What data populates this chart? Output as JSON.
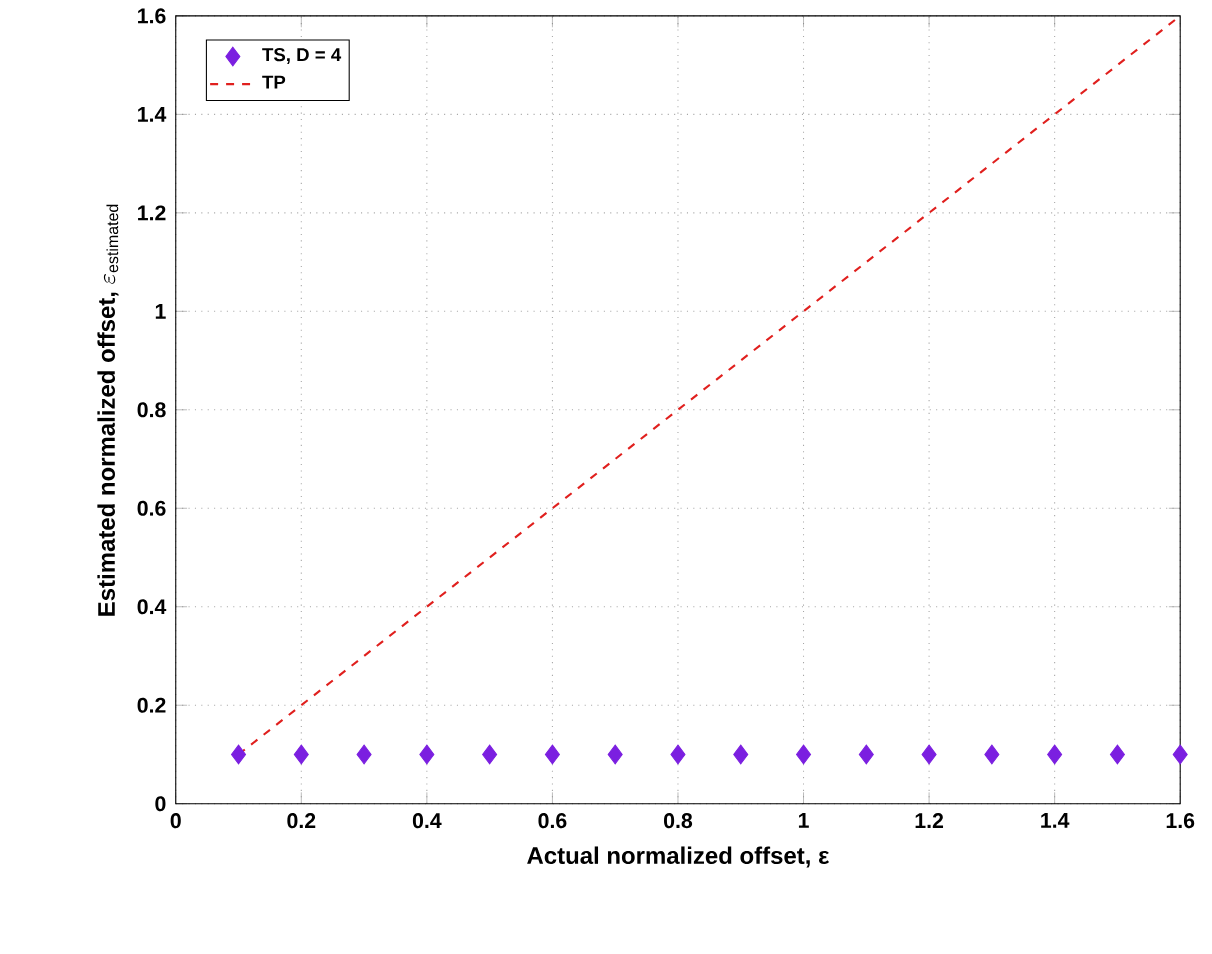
{
  "chart_data": {
    "type": "scatter",
    "xlabel": "Actual normalized offset, ε",
    "ylabel": "\\mbox{Estimated normalized offset, }\\varepsilon_{\\mathrm{estimated}}",
    "xlim": [
      0,
      1.6
    ],
    "ylim": [
      0,
      1.6
    ],
    "xticks": [
      0,
      0.2,
      0.4,
      0.6,
      0.8,
      1,
      1.2,
      1.4,
      1.6
    ],
    "yticks": [
      0,
      0.2,
      0.4,
      0.6,
      0.8,
      1,
      1.2,
      1.4,
      1.6
    ],
    "grid": true,
    "legend": "top left",
    "series": [
      {
        "name": "TS, D = 4",
        "marker": "diamond",
        "color": "#7b1fe0",
        "x": [
          0.1,
          0.2,
          0.3,
          0.4,
          0.5,
          0.6,
          0.7,
          0.8,
          0.9,
          1.0,
          1.1,
          1.2,
          1.3,
          1.4,
          1.5,
          1.6
        ],
        "values": [
          0.1,
          0.1,
          0.1,
          0.1,
          0.1,
          0.1,
          0.1,
          0.1,
          0.1,
          0.1,
          0.1,
          0.1,
          0.1,
          0.1,
          0.1,
          0.1
        ]
      },
      {
        "name": "TP",
        "type": "line",
        "line_style": "dashed",
        "color": "#e0201e",
        "x": [
          0.1,
          1.6
        ],
        "values": [
          0.1,
          1.6
        ]
      }
    ]
  }
}
